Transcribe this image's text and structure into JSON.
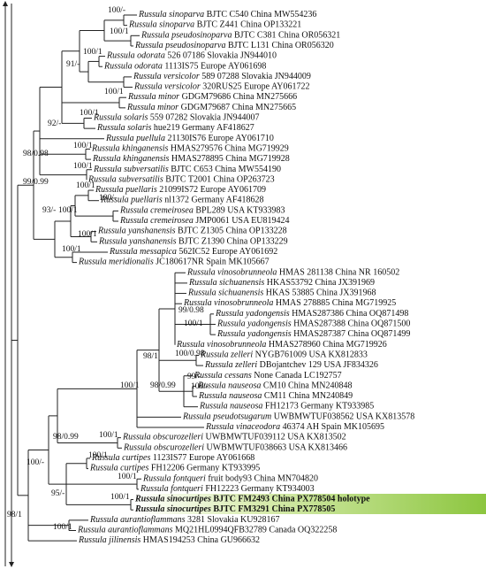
{
  "leaves": [
    {
      "species": "Russula sinoparva",
      "voucher": "BJTC C540 China MW554236"
    },
    {
      "species": "Russula sinoparva",
      "voucher": "BJTC Z441 China OP133221"
    },
    {
      "species": "Russula pseudosinoparva",
      "voucher": "BJTC C381 China OR056321"
    },
    {
      "species": "Russula pseudosinoparva",
      "voucher": "BJTC L131 China OR056320"
    },
    {
      "species": "Russula odorata",
      "voucher": "526 07186 Slovakia JN944010"
    },
    {
      "species": "Russula odorata",
      "voucher": "1113IS75 Europe AY061698"
    },
    {
      "species": "Russula versicolor",
      "voucher": "589 07288 Slovakia JN944009"
    },
    {
      "species": "Russula versicolor",
      "voucher": "320RUS25 Europe AY061722"
    },
    {
      "species": "Russula minor",
      "voucher": "GDGM79686 China MN275666"
    },
    {
      "species": "Russula minor",
      "voucher": "GDGM79687 China MN275665"
    },
    {
      "species": "Russula solaris",
      "voucher": "559 07282 Slovakia JN944007"
    },
    {
      "species": "Russula solaris",
      "voucher": "hue219 Germany AF418627"
    },
    {
      "species": "Russula puellula",
      "voucher": "21130IS76 Europe AY061710"
    },
    {
      "species": "Russula khinganensis",
      "voucher": "HMAS279576 China MG719929"
    },
    {
      "species": "Russula khinganensis",
      "voucher": "HMAS278895 China MG719928"
    },
    {
      "species": "Russula subversatilis",
      "voucher": "BJTC C653 China MW554190"
    },
    {
      "species": "Russula subversatilis",
      "voucher": "BJTC T2001 China OP263723"
    },
    {
      "species": "Russula puellaris",
      "voucher": "21099IS72 Europe AY061709"
    },
    {
      "species": "Russula puellaris",
      "voucher": "nl1372 Germany AF418628"
    },
    {
      "species": "Russula cremeirosea",
      "voucher": "BPL289 USA KT933983"
    },
    {
      "species": "Russula cremeirosea",
      "voucher": "JMP0061 USA EU819424"
    },
    {
      "species": "Russula yanshanensis",
      "voucher": "BJTC Z1305 China OP133228"
    },
    {
      "species": "Russula yanshanensis",
      "voucher": "BJTC Z1390 China OP133229"
    },
    {
      "species": "Russula messapica",
      "voucher": "562IC52 Europe AY061692"
    },
    {
      "species": "Russula meridionalis",
      "voucher": "JC180617NR Spain MK105667"
    },
    {
      "species": "Russula vinosobrunneola",
      "voucher": "HMAS 281138 China NR 160502"
    },
    {
      "species": "Russula sichuanensis",
      "voucher": "HKAS53792 China JX391969"
    },
    {
      "species": "Russula sichuanensis",
      "voucher": "HKAS 53885 China JX391968"
    },
    {
      "species": "Russula vinosobrunneola",
      "voucher": "HMAS 278885 China MG719925"
    },
    {
      "species": "Russula yadongensis",
      "voucher": "HMAS287386 China OQ871498"
    },
    {
      "species": "Russula yadongensis",
      "voucher": "HMAS287388 China OQ871500"
    },
    {
      "species": "Russula yadongensis",
      "voucher": "HMAS287387 China OQ871499"
    },
    {
      "species": "Russula vinosobrunneola",
      "voucher": "HMAS278960 China MG719926"
    },
    {
      "species": "Russula zelleri",
      "voucher": "NYGB761009 USA KX812833"
    },
    {
      "species": "Russula zelleri",
      "voucher": "DBojantchev 129 USA JF834326"
    },
    {
      "species": "Russula cessans",
      "voucher": "None Canada LC192757"
    },
    {
      "species": "Russula nauseosa",
      "voucher": "CM10 China MN240848"
    },
    {
      "species": "Russula nauseosa",
      "voucher": "CM11 China MN240849"
    },
    {
      "species": "Russula nauseosa",
      "voucher": "FH12173 Germany KT933985"
    },
    {
      "species": "Russula pseudotsugarum",
      "voucher": "UWBMWTUF038562 USA KX813578"
    },
    {
      "species": "Russula vinaceodora",
      "voucher": "46374 AH Spain MK105695"
    },
    {
      "species": "Russula obscurozelleri",
      "voucher": "UWBMWTUF039112 USA KX813502"
    },
    {
      "species": "Russula obscurozelleri",
      "voucher": "UWBMWTUF038663 USA KX813466"
    },
    {
      "species": "Russula curtipes",
      "voucher": "1123IS77 Europe AY061668"
    },
    {
      "species": "Russula curtipes",
      "voucher": "FH12206 Germany KT933995"
    },
    {
      "species": "Russula fontqueri",
      "voucher": "fruit body93 China MN704820"
    },
    {
      "species": "Russula fontqueri",
      "voucher": "FH12223 Germany KT934003"
    },
    {
      "species": "Russula sinocurtipes",
      "voucher": "BJTC FM2493 China PX778504 holotype"
    },
    {
      "species": "Russula sinocurtipes",
      "voucher": "BJTC FM3291 China PX778505"
    },
    {
      "species": "Russula aurantioflammans",
      "voucher": "3281 Slovakia KU928167"
    },
    {
      "species": "Russula aurantioflammans",
      "voucher": "MQ21HL0994QFB32789 Canada OQ322258"
    },
    {
      "species": "Russula jilinensis",
      "voucher": "HMAS194253 China GU966632"
    }
  ],
  "supports": [
    "100/-",
    "100/1",
    "100/1",
    "91/-",
    "100/1",
    "92/-",
    "100/1",
    "100/1",
    "98/0.98",
    "100/1",
    "99/0.99",
    "100/1",
    "100/-",
    "100/1",
    "93/-",
    "100/1",
    "100/1",
    "99/0.98",
    "100/1",
    "98/1",
    "100/0.98",
    "99/-",
    "100/-",
    "98/0.99",
    "100/1",
    "98/0.99",
    "100/1",
    "100/-",
    "100/1",
    "100/1",
    "100/1",
    "95/-",
    "98/1",
    "100/1"
  ]
}
